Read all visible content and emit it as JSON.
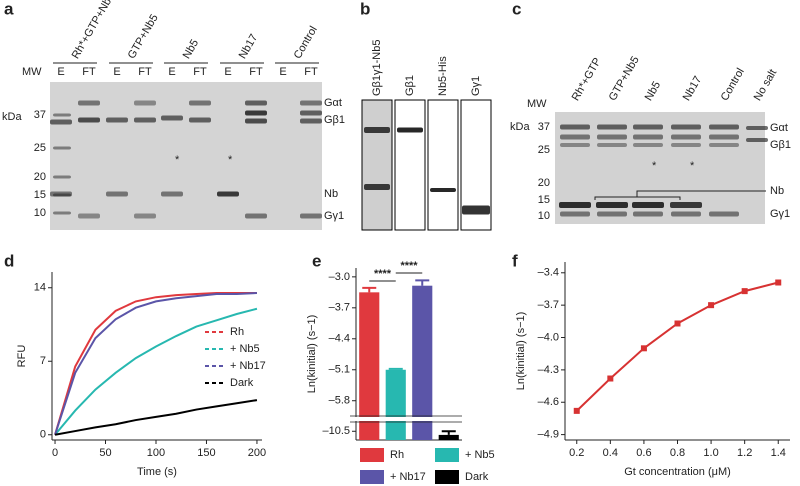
{
  "panel_a": {
    "letter": "a",
    "lanes_header": [
      "Rh*+GTP+Nb5",
      "GTP+Nb5",
      "Nb5",
      "Nb17",
      "Control"
    ],
    "mw": "MW",
    "unit": "kDa",
    "lane_labels": [
      "E",
      "FT",
      "E",
      "FT",
      "E",
      "FT",
      "E",
      "FT",
      "E",
      "FT"
    ],
    "markers": [
      "37",
      "25",
      "20",
      "15",
      "10"
    ],
    "bands": [
      "Gαt",
      "Gβ1",
      "Nb",
      "Gγ1"
    ],
    "asterisks": [
      "*",
      "*"
    ]
  },
  "panel_b": {
    "letter": "b",
    "lanes": [
      "Gβ1γ1-Nb5",
      "Gβ1",
      "Nb5-His",
      "Gγ1"
    ]
  },
  "panel_c": {
    "letter": "c",
    "mw": "MW",
    "unit": "kDa",
    "lanes": [
      "Rh*+GTP",
      "GTP+Nb5",
      "Nb5",
      "Nb17",
      "Control",
      "No salt"
    ],
    "markers": [
      "37",
      "25",
      "20",
      "15",
      "10"
    ],
    "bands": [
      "Gαt",
      "Gβ1",
      "Nb",
      "Gγ1"
    ],
    "asterisks": [
      "*",
      "*"
    ]
  },
  "chart_data": [
    {
      "type": "line",
      "panel": "d",
      "xlabel": "Time (s)",
      "ylabel": "RFU",
      "x": [
        0,
        20,
        40,
        60,
        80,
        100,
        120,
        140,
        160,
        180,
        200
      ],
      "series": [
        {
          "name": "Rh",
          "color": "#e0393e",
          "values": [
            0,
            6.5,
            10.0,
            11.8,
            12.7,
            13.1,
            13.3,
            13.4,
            13.5,
            13.5,
            13.5
          ]
        },
        {
          "name": "+ Nb5",
          "color": "#27b8b0",
          "values": [
            0,
            2.3,
            4.3,
            5.9,
            7.3,
            8.4,
            9.4,
            10.3,
            10.9,
            11.5,
            12.0
          ]
        },
        {
          "name": "+ Nb17",
          "color": "#5b55a8",
          "values": [
            0,
            5.9,
            9.2,
            11.0,
            12.1,
            12.7,
            13.0,
            13.2,
            13.4,
            13.4,
            13.5
          ]
        },
        {
          "name": "Dark",
          "color": "#000000",
          "values": [
            0,
            0.35,
            0.7,
            1.0,
            1.4,
            1.7,
            2.0,
            2.4,
            2.7,
            3.0,
            3.3
          ]
        }
      ],
      "xlim": [
        -3,
        205
      ],
      "xticks": [
        0,
        50,
        100,
        150,
        200
      ],
      "ylim": [
        -0.5,
        15.5
      ],
      "yticks": [
        0,
        7,
        14
      ]
    },
    {
      "type": "bar",
      "panel": "e",
      "ylabel": "Ln(kinitial) (s−1)",
      "categories": [
        "Rh",
        "+ Nb5",
        "+ Nb17",
        "Dark"
      ],
      "values": [
        -3.35,
        -5.1,
        -3.2,
        -10.55
      ],
      "errors": [
        0.1,
        0.02,
        0.12,
        0.05
      ],
      "colors": [
        "#e0393e",
        "#27b8b0",
        "#5b55a8",
        "#000000"
      ],
      "ylim": [
        -10.62,
        -2.8
      ],
      "axis_break": [
        -10.4,
        -6.1
      ],
      "yticks": [
        {
          "value": -3.0,
          "label": "–3.0"
        },
        {
          "value": -3.7,
          "label": "–3.7"
        },
        {
          "value": -4.4,
          "label": "–4.4"
        },
        {
          "value": -5.1,
          "label": "–5.1"
        },
        {
          "value": -5.8,
          "label": "–5.8"
        },
        {
          "value": -10.5,
          "label": "–10.5"
        }
      ],
      "annotations": [
        "****",
        "****"
      ]
    },
    {
      "type": "line",
      "panel": "f",
      "xlabel": "Gt concentration (μM)",
      "ylabel": "Ln(kinitial) (s−1)",
      "markers": true,
      "x": [
        0.2,
        0.4,
        0.6,
        0.8,
        1.0,
        1.2,
        1.4
      ],
      "series": [
        {
          "color": "#d73232",
          "values": [
            -4.68,
            -4.38,
            -4.1,
            -3.87,
            -3.7,
            -3.57,
            -3.49
          ]
        }
      ],
      "xlim": [
        0.13,
        1.47
      ],
      "xticks": [
        0.2,
        0.4,
        0.6,
        0.8,
        {
          "value": 1.0,
          "label": "1.0"
        },
        1.2,
        1.4
      ],
      "ylim": [
        -4.95,
        -3.3
      ],
      "yticks": [
        {
          "value": -3.4,
          "label": "–3.4"
        },
        {
          "value": -3.7,
          "label": "–3.7"
        },
        {
          "value": -4.0,
          "label": "–4.0"
        },
        {
          "value": -4.3,
          "label": "–4.3"
        },
        {
          "value": -4.6,
          "label": "–4.6"
        },
        {
          "value": -4.9,
          "label": "–4.9"
        }
      ]
    }
  ]
}
